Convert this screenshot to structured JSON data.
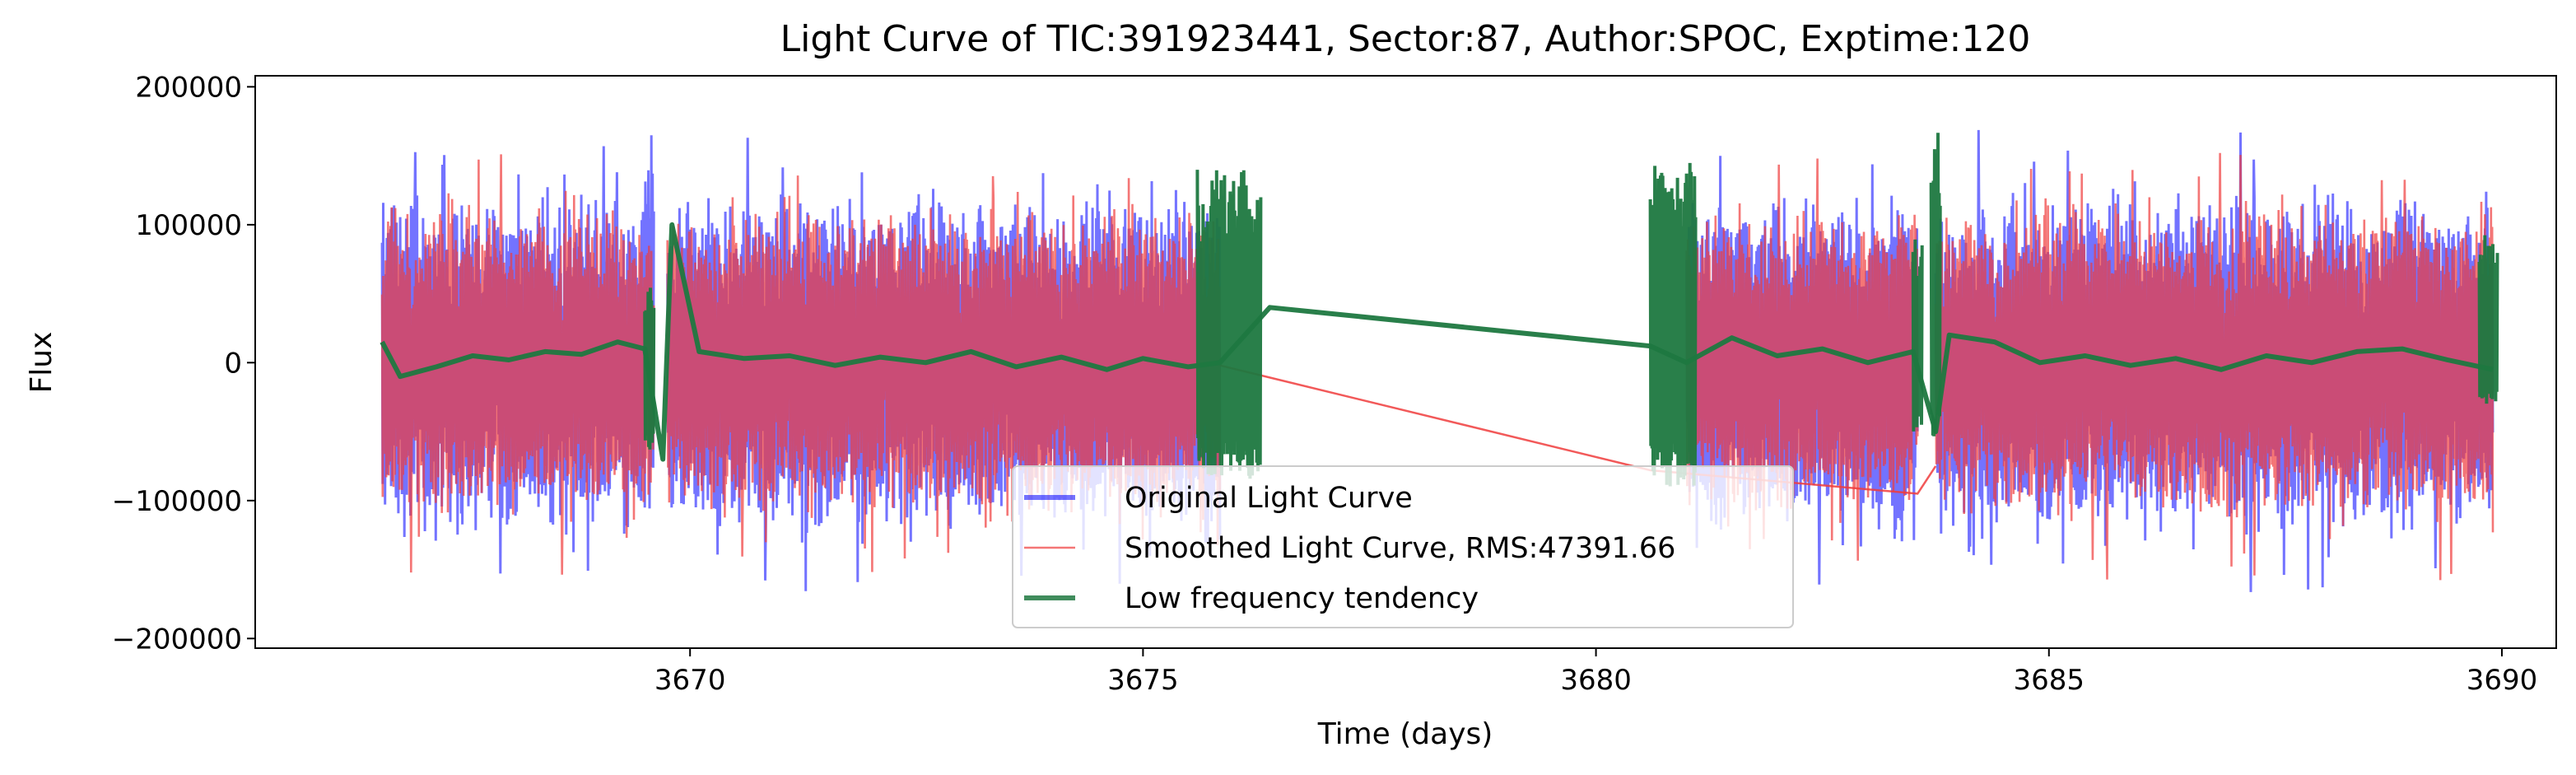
{
  "chart_data": {
    "type": "line",
    "title": "Light Curve of TIC:391923441, Sector:87, Author:SPOC, Exptime:120",
    "xlabel": "Time (days)",
    "ylabel": "Flux",
    "xlim": [
      3665.2,
      3690.6
    ],
    "ylim": [
      -207000,
      208000
    ],
    "xticks": [
      3670,
      3675,
      3680,
      3685,
      3690
    ],
    "xtick_labels": [
      "3670",
      "3675",
      "3680",
      "3685",
      "3690"
    ],
    "yticks": [
      200000,
      100000,
      0,
      -100000,
      -200000
    ],
    "ytick_labels": [
      "200000",
      "100000",
      "0",
      "−100000",
      "−200000"
    ],
    "grid": false,
    "legend_position": "lower center",
    "observation_segments": [
      [
        3666.6,
        3669.6
      ],
      [
        3669.75,
        3675.85
      ],
      [
        3681.0,
        3683.55
      ],
      [
        3683.75,
        3689.9
      ]
    ],
    "series": [
      {
        "name": "Original Light Curve",
        "color": "#0000ff",
        "opacity": 0.55,
        "style": "dense noisy flux, amplitude about ±100000 with peaks near ±180000",
        "envelope": {
          "typical_max": 100000,
          "typical_min": -100000,
          "peak_max": 180000,
          "peak_min": -187000
        }
      },
      {
        "name": "Smoothed Light Curve, RMS:47391.66",
        "color": "#f03c3c",
        "opacity": 0.7,
        "style": "dense noisy flux overlapping the original, with thin connecting lines across the data gaps",
        "gap_connectors": [
          [
            3675.85,
            -2000
          ],
          [
            3680.6,
            -78000
          ],
          [
            3683.55,
            -95000
          ],
          [
            3683.75,
            -75000
          ]
        ]
      },
      {
        "name": "Low frequency tendency",
        "color": "#1e7840",
        "opacity": 0.95,
        "style": "slow trend near zero with oscillating segment edges",
        "points": [
          [
            3666.6,
            15000
          ],
          [
            3666.8,
            -10000
          ],
          [
            3667.2,
            -3000
          ],
          [
            3667.6,
            5000
          ],
          [
            3668.0,
            2000
          ],
          [
            3668.4,
            8000
          ],
          [
            3668.8,
            6000
          ],
          [
            3669.2,
            15000
          ],
          [
            3669.5,
            10000
          ],
          [
            3669.7,
            -70000
          ],
          [
            3669.8,
            100000
          ],
          [
            3670.1,
            8000
          ],
          [
            3670.6,
            3000
          ],
          [
            3671.1,
            5000
          ],
          [
            3671.6,
            -2000
          ],
          [
            3672.1,
            4000
          ],
          [
            3672.6,
            0
          ],
          [
            3673.1,
            8000
          ],
          [
            3673.6,
            -3000
          ],
          [
            3674.1,
            4000
          ],
          [
            3674.6,
            -5000
          ],
          [
            3675.0,
            3000
          ],
          [
            3675.5,
            -3000
          ],
          [
            3675.85,
            0
          ],
          [
            3676.4,
            40000
          ],
          [
            3680.6,
            12000
          ],
          [
            3681.0,
            0
          ],
          [
            3681.5,
            18000
          ],
          [
            3682.0,
            5000
          ],
          [
            3682.5,
            10000
          ],
          [
            3683.0,
            0
          ],
          [
            3683.5,
            8000
          ],
          [
            3683.75,
            -50000
          ],
          [
            3683.9,
            20000
          ],
          [
            3684.4,
            15000
          ],
          [
            3684.9,
            0
          ],
          [
            3685.4,
            5000
          ],
          [
            3685.9,
            -2000
          ],
          [
            3686.4,
            3000
          ],
          [
            3686.9,
            -5000
          ],
          [
            3687.4,
            5000
          ],
          [
            3687.9,
            0
          ],
          [
            3688.4,
            8000
          ],
          [
            3688.9,
            10000
          ],
          [
            3689.4,
            2000
          ],
          [
            3689.9,
            -5000
          ]
        ],
        "oscillating_edges": [
          {
            "x_start": 3675.6,
            "x_end": 3676.3,
            "min": -85000,
            "max": 140000
          },
          {
            "x_start": 3680.6,
            "x_end": 3681.1,
            "min": -90000,
            "max": 145000
          },
          {
            "x_start": 3669.5,
            "x_end": 3669.6,
            "min": -75000,
            "max": 55000
          },
          {
            "x_start": 3683.5,
            "x_end": 3683.6,
            "min": -50000,
            "max": 95000
          },
          {
            "x_start": 3683.7,
            "x_end": 3683.8,
            "min": -55000,
            "max": 185000
          },
          {
            "x_start": 3689.75,
            "x_end": 3689.95,
            "min": -30000,
            "max": 95000
          }
        ]
      }
    ]
  }
}
